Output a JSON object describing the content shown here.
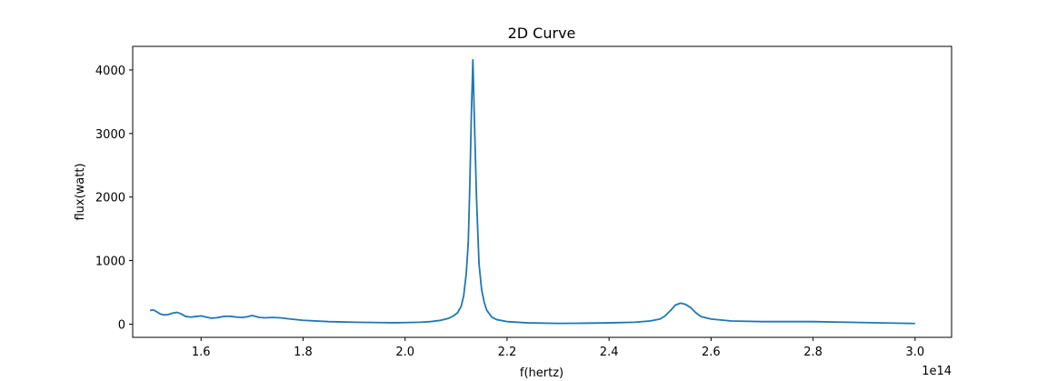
{
  "chart_data": {
    "type": "line",
    "title": "2D Curve",
    "xlabel": "f(hertz)",
    "ylabel": "flux(watt)",
    "x_offset_label": "1e14",
    "xlim": [
      1.4659,
      3.0716
    ],
    "ylim": [
      -208,
      4371
    ],
    "xticks": [
      {
        "value": 1.6,
        "label": "1.6"
      },
      {
        "value": 1.8,
        "label": "1.8"
      },
      {
        "value": 2.0,
        "label": "2.0"
      },
      {
        "value": 2.2,
        "label": "2.2"
      },
      {
        "value": 2.4,
        "label": "2.4"
      },
      {
        "value": 2.6,
        "label": "2.6"
      },
      {
        "value": 2.8,
        "label": "2.8"
      },
      {
        "value": 3.0,
        "label": "3.0"
      }
    ],
    "yticks": [
      {
        "value": 0,
        "label": "0"
      },
      {
        "value": 1000,
        "label": "1000"
      },
      {
        "value": 2000,
        "label": "2000"
      },
      {
        "value": 3000,
        "label": "3000"
      },
      {
        "value": 4000,
        "label": "4000"
      }
    ],
    "grid": false,
    "series": [
      {
        "color": "#1f77b4",
        "x": [
          1.5,
          1.506,
          1.513,
          1.52,
          1.527,
          1.535,
          1.545,
          1.553,
          1.56,
          1.57,
          1.58,
          1.59,
          1.6,
          1.61,
          1.62,
          1.63,
          1.64,
          1.65,
          1.66,
          1.67,
          1.68,
          1.69,
          1.7,
          1.708,
          1.715,
          1.725,
          1.74,
          1.755,
          1.77,
          1.8,
          1.85,
          1.9,
          1.95,
          1.98,
          2.0,
          2.03,
          2.05,
          2.07,
          2.085,
          2.095,
          2.103,
          2.11,
          2.115,
          2.12,
          2.124,
          2.127,
          2.13,
          2.133,
          2.136,
          2.14,
          2.145,
          2.15,
          2.155,
          2.16,
          2.17,
          2.18,
          2.2,
          2.24,
          2.3,
          2.35,
          2.4,
          2.45,
          2.48,
          2.5,
          2.51,
          2.52,
          2.53,
          2.54,
          2.55,
          2.56,
          2.57,
          2.58,
          2.6,
          2.64,
          2.7,
          2.8,
          2.9,
          3.0
        ],
        "y": [
          215,
          225,
          195,
          160,
          145,
          150,
          175,
          185,
          165,
          120,
          110,
          120,
          130,
          110,
          95,
          100,
          115,
          125,
          120,
          110,
          105,
          115,
          135,
          120,
          105,
          100,
          105,
          100,
          85,
          60,
          40,
          30,
          25,
          22,
          25,
          30,
          40,
          60,
          90,
          130,
          180,
          280,
          450,
          800,
          1300,
          2200,
          3300,
          4160,
          3200,
          2000,
          950,
          550,
          350,
          220,
          110,
          70,
          40,
          20,
          12,
          15,
          20,
          30,
          50,
          80,
          130,
          210,
          300,
          330,
          310,
          260,
          180,
          120,
          80,
          50,
          40,
          40,
          25,
          10
        ]
      }
    ]
  }
}
